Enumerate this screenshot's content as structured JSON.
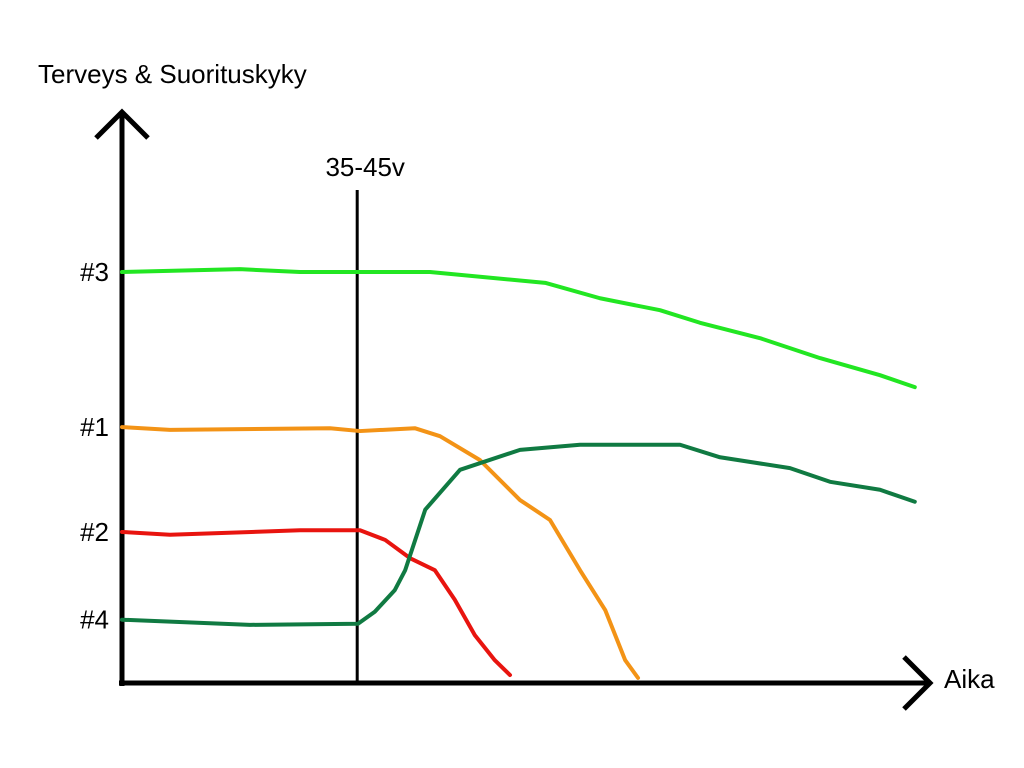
{
  "chart_data": {
    "type": "line",
    "y_label": "Terveys & Suorituskyky",
    "x_label": "Aika",
    "xlim": [
      0,
      100
    ],
    "ylim": [
      0,
      100
    ],
    "annotation": {
      "text": "35-45v",
      "x": 29.4
    },
    "series": [
      {
        "name": "#3",
        "color": "#22e622",
        "x": [
          0,
          14.75,
          22.25,
          38.5,
          52.9,
          59.75,
          67.25,
          72.25,
          79.75,
          87.25,
          94.75,
          99.1
        ],
        "values": [
          72.1,
          72.6,
          72.1,
          72.1,
          70.2,
          67.5,
          65.4,
          63.2,
          60.5,
          57.0,
          54.0,
          51.9
        ]
      },
      {
        "name": "#1",
        "color": "#f39316",
        "x": [
          0,
          6,
          26,
          29.75,
          36.6,
          39.75,
          44.75,
          49.75,
          53.5,
          57.25,
          60.4,
          62.9,
          64.5
        ],
        "values": [
          44.9,
          44.4,
          44.7,
          44.2,
          44.7,
          43.3,
          39.1,
          32.1,
          28.6,
          19.8,
          12.8,
          4.0,
          0.9
        ]
      },
      {
        "name": "#2",
        "color": "#e8140f",
        "x": [
          0,
          6,
          22.25,
          29.75,
          32.9,
          36,
          39.1,
          41.6,
          44.1,
          46.6,
          48.5
        ],
        "values": [
          26.5,
          26.0,
          26.8,
          26.8,
          25.1,
          21.9,
          19.8,
          14.6,
          8.4,
          4.0,
          1.4
        ]
      },
      {
        "name": "#4",
        "color": "#107a42",
        "x": [
          0,
          16,
          29.5,
          31.6,
          34.1,
          35.4,
          37.9,
          42.25,
          49.75,
          57.25,
          69.75,
          74.75,
          83.5,
          88.5,
          94.75,
          99.1
        ],
        "values": [
          11.1,
          10.2,
          10.4,
          12.5,
          16.3,
          19.8,
          30.4,
          37.4,
          40.9,
          41.8,
          41.8,
          39.6,
          37.7,
          35.3,
          33.9,
          31.8
        ]
      }
    ]
  }
}
